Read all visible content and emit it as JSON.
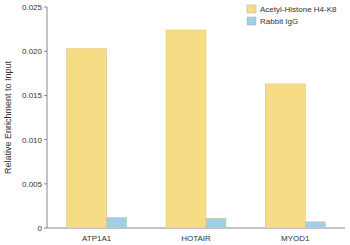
{
  "chart_data": {
    "type": "bar",
    "y_label": "Relative Enrichment to Input",
    "categories": [
      "ATP1A1",
      "HOTAIR",
      "MYOD1"
    ],
    "series": [
      {
        "name": "Acetyl-Histone H4-K8",
        "color": "#f7dc86",
        "values": [
          0.0203,
          0.0224,
          0.0163
        ]
      },
      {
        "name": "Rabbit IgG",
        "color": "#9fd0ea",
        "values": [
          0.0012,
          0.0011,
          0.0007
        ]
      }
    ],
    "ylim": [
      0,
      0.025
    ],
    "yticks": [
      0,
      0.005,
      {
        "value": 0.01,
        "label": "0.010"
      },
      0.015,
      {
        "value": 0.02,
        "label": "0.020"
      },
      0.025
    ],
    "grid": false,
    "legend": "top-right"
  }
}
